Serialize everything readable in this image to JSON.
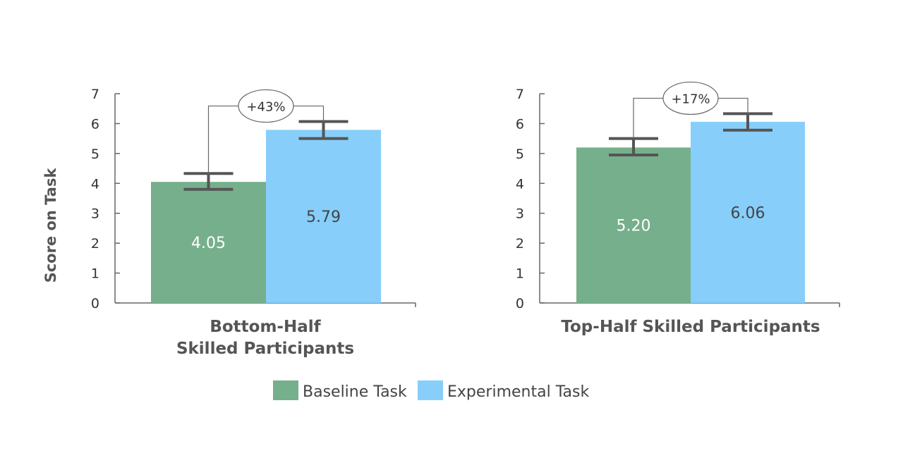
{
  "colors": {
    "baseline": "#76AF8C",
    "experimental": "#87CEFA",
    "error_bar": "#555555",
    "axis": "#666666",
    "bar_label_light": "#ffffff",
    "bar_label_dark": "#444444"
  },
  "chart_data": [
    {
      "type": "bar",
      "title_lines": [
        "Bottom-Half",
        "Skilled Participants"
      ],
      "ylabel": "Score on Task",
      "ylim": [
        0,
        7
      ],
      "yticks": [
        "0",
        "1",
        "2",
        "3",
        "4",
        "5",
        "6",
        "7"
      ],
      "series": [
        {
          "name": "Baseline Task",
          "value": 4.05,
          "label": "4.05",
          "error": [
            3.8,
            4.33
          ]
        },
        {
          "name": "Experimental Task",
          "value": 5.79,
          "label": "5.79",
          "error": [
            5.5,
            6.07
          ]
        }
      ],
      "difference_label": "+43%"
    },
    {
      "type": "bar",
      "title_lines": [
        "Top-Half Skilled Participants"
      ],
      "ylim": [
        0,
        7
      ],
      "yticks": [
        "0",
        "1",
        "2",
        "3",
        "4",
        "5",
        "6",
        "7"
      ],
      "series": [
        {
          "name": "Baseline Task",
          "value": 5.2,
          "label": "5.20",
          "error": [
            4.95,
            5.5
          ]
        },
        {
          "name": "Experimental Task",
          "value": 6.06,
          "label": "6.06",
          "error": [
            5.78,
            6.33
          ]
        }
      ],
      "difference_label": "+17%"
    }
  ],
  "legend": [
    {
      "label": "Baseline Task",
      "color_key": "baseline"
    },
    {
      "label": "Experimental Task",
      "color_key": "experimental"
    }
  ]
}
